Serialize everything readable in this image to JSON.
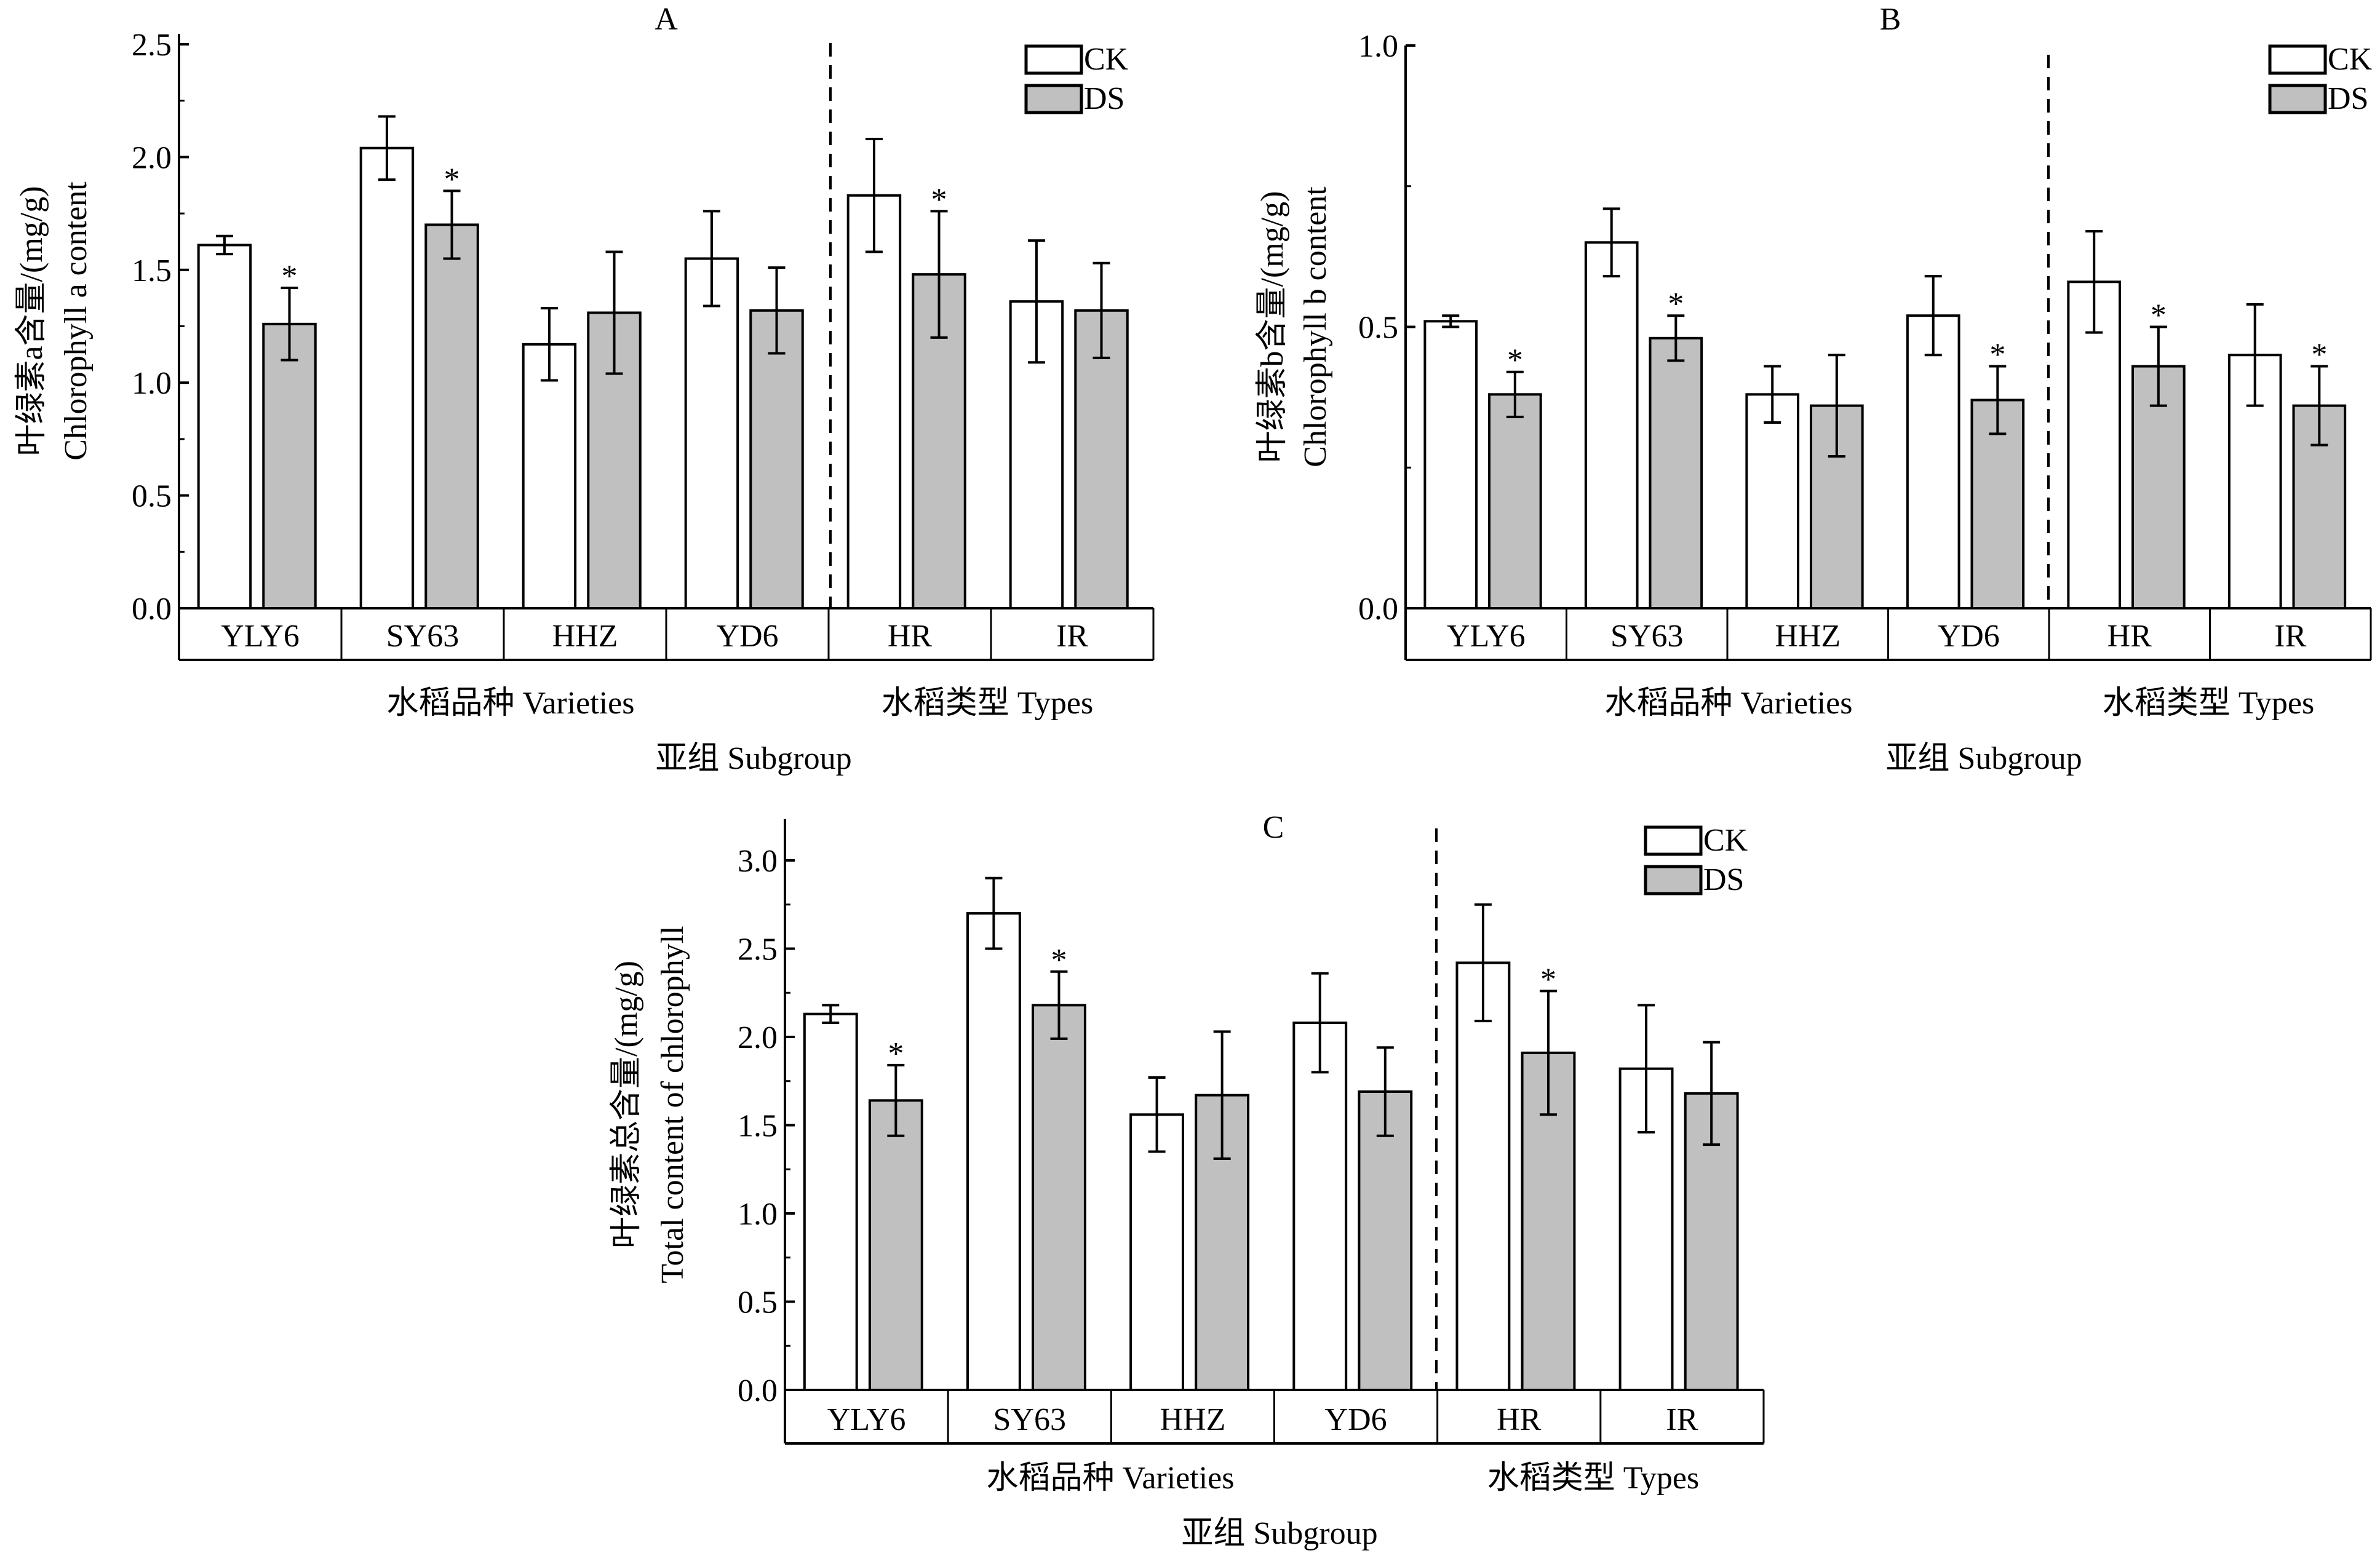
{
  "legend": {
    "ck": "CK",
    "ds": "DS"
  },
  "colors": {
    "ck": "#ffffff",
    "ds": "#c0c0c0",
    "stroke": "#000000"
  },
  "chart_data": [
    {
      "type": "bar",
      "panel": "A",
      "ylabel_cn": "叶绿素a含量/(mg/g)",
      "ylabel_en": "Chlorophyll a content",
      "ylim": [
        0,
        2.5
      ],
      "yticks": [
        "0.0",
        "0.5",
        "1.0",
        "1.5",
        "2.0",
        "2.5"
      ],
      "categories": [
        "YLY6",
        "SY63",
        "HHZ",
        "YD6",
        "HR",
        "IR"
      ],
      "group_labels": [
        "水稻品种 Varieties",
        "水稻类型  Types"
      ],
      "xlabel": "亚组  Subgroup",
      "series": [
        {
          "name": "CK",
          "values": [
            1.61,
            2.04,
            1.17,
            1.55,
            1.83,
            1.36
          ],
          "errors": [
            0.04,
            0.14,
            0.16,
            0.21,
            0.25,
            0.27
          ],
          "sig": [
            false,
            false,
            false,
            false,
            false,
            false
          ]
        },
        {
          "name": "DS",
          "values": [
            1.26,
            1.7,
            1.31,
            1.32,
            1.48,
            1.32
          ],
          "errors": [
            0.16,
            0.15,
            0.27,
            0.19,
            0.28,
            0.21
          ],
          "sig": [
            true,
            true,
            false,
            false,
            true,
            false
          ]
        }
      ]
    },
    {
      "type": "bar",
      "panel": "B",
      "ylabel_cn": "叶绿素b含量/(mg/g)",
      "ylabel_en": "Chlorophyll b content",
      "ylim": [
        0,
        1.0
      ],
      "yticks": [
        "0.0",
        "0.5",
        "1.0"
      ],
      "categories": [
        "YLY6",
        "SY63",
        "HHZ",
        "YD6",
        "HR",
        "IR"
      ],
      "group_labels": [
        "水稻品种 Varieties",
        "水稻类型  Types"
      ],
      "xlabel": "亚组  Subgroup",
      "series": [
        {
          "name": "CK",
          "values": [
            0.51,
            0.65,
            0.38,
            0.52,
            0.58,
            0.45
          ],
          "errors": [
            0.01,
            0.06,
            0.05,
            0.07,
            0.09,
            0.09
          ],
          "sig": [
            false,
            false,
            false,
            false,
            false,
            false
          ]
        },
        {
          "name": "DS",
          "values": [
            0.38,
            0.48,
            0.36,
            0.37,
            0.43,
            0.36
          ],
          "errors": [
            0.04,
            0.04,
            0.09,
            0.06,
            0.07,
            0.07
          ],
          "sig": [
            true,
            true,
            false,
            true,
            true,
            true
          ]
        }
      ]
    },
    {
      "type": "bar",
      "panel": "C",
      "ylabel_cn": "叶绿素总含量/(mg/g)",
      "ylabel_en": "Total content of chlorophyll",
      "ylim": [
        0,
        3.25
      ],
      "yticks": [
        "0.0",
        "0.5",
        "1.0",
        "1.5",
        "2.0",
        "2.5",
        "3.0"
      ],
      "categories": [
        "YLY6",
        "SY63",
        "HHZ",
        "YD6",
        "HR",
        "IR"
      ],
      "group_labels": [
        "水稻品种 Varieties",
        "水稻类型  Types"
      ],
      "xlabel": "亚组  Subgroup",
      "series": [
        {
          "name": "CK",
          "values": [
            2.13,
            2.7,
            1.56,
            2.08,
            2.42,
            1.82
          ],
          "errors": [
            0.05,
            0.2,
            0.21,
            0.28,
            0.33,
            0.36
          ],
          "sig": [
            false,
            false,
            false,
            false,
            false,
            false
          ]
        },
        {
          "name": "DS",
          "values": [
            1.64,
            2.18,
            1.67,
            1.69,
            1.91,
            1.68
          ],
          "errors": [
            0.2,
            0.19,
            0.36,
            0.25,
            0.35,
            0.29
          ],
          "sig": [
            true,
            true,
            false,
            false,
            true,
            false
          ]
        }
      ]
    }
  ]
}
